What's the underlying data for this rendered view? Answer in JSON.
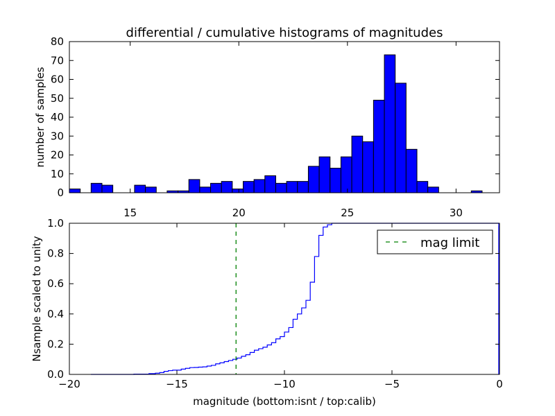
{
  "chart_data": [
    {
      "type": "bar",
      "title": "differential / cumulative histograms of magnitudes",
      "ylabel": "number of samples",
      "xlabel": "",
      "xlim": [
        12.2,
        32.0
      ],
      "ylim": [
        0,
        80
      ],
      "xticks": [
        "15",
        "20",
        "25",
        "30"
      ],
      "yticks": [
        "0",
        "10",
        "20",
        "30",
        "40",
        "50",
        "60",
        "70",
        "80"
      ],
      "bin_edges": [
        12.2,
        12.7,
        13.2,
        13.7,
        14.2,
        14.7,
        15.2,
        15.7,
        16.2,
        16.7,
        17.2,
        17.7,
        18.2,
        18.7,
        19.2,
        19.7,
        20.2,
        20.7,
        21.2,
        21.7,
        22.2,
        22.7,
        23.2,
        23.7,
        24.2,
        24.7,
        25.2,
        25.7,
        26.2,
        26.7,
        27.2,
        27.7,
        28.2,
        28.7,
        29.2,
        29.7,
        30.2,
        30.7,
        31.2
      ],
      "values": [
        2,
        0,
        5,
        4,
        0,
        0,
        4,
        3,
        0,
        1,
        1,
        7,
        3,
        5,
        6,
        2,
        6,
        7,
        9,
        5,
        6,
        6,
        14,
        19,
        13,
        19,
        30,
        27,
        49,
        73,
        58,
        23,
        6,
        3,
        0,
        0,
        0,
        1
      ],
      "color": "#0000ff"
    },
    {
      "type": "line",
      "xlabel": "magnitude (bottom:isnt / top:calib)",
      "ylabel": "Nsample scaled to unity",
      "xlim": [
        -20,
        0
      ],
      "ylim": [
        0,
        1.0
      ],
      "xticks": [
        "−20",
        "−15",
        "−10",
        "−5",
        "0"
      ],
      "yticks": [
        "0.0",
        "0.2",
        "0.4",
        "0.6",
        "0.8",
        "1.0"
      ],
      "series": [
        {
          "style": "step",
          "color": "#0000ff",
          "x": [
            -19.0,
            -17.0,
            -16.3,
            -16.0,
            -15.8,
            -15.6,
            -15.4,
            -15.2,
            -14.8,
            -14.6,
            -14.4,
            -14.2,
            -14.0,
            -13.8,
            -13.6,
            -13.4,
            -13.2,
            -13.0,
            -12.8,
            -12.6,
            -12.4,
            -12.2,
            -12.0,
            -11.8,
            -11.6,
            -11.4,
            -11.2,
            -11.0,
            -10.8,
            -10.6,
            -10.4,
            -10.2,
            -10.0,
            -9.8,
            -9.6,
            -9.4,
            -9.2,
            -9.0,
            -8.8,
            -8.6,
            -8.4,
            -8.2,
            -8.0,
            -7.8
          ],
          "y": [
            0.0,
            0.002,
            0.005,
            0.008,
            0.012,
            0.02,
            0.025,
            0.028,
            0.035,
            0.04,
            0.045,
            0.046,
            0.048,
            0.05,
            0.055,
            0.06,
            0.07,
            0.077,
            0.085,
            0.092,
            0.1,
            0.108,
            0.12,
            0.13,
            0.145,
            0.16,
            0.17,
            0.18,
            0.195,
            0.21,
            0.235,
            0.25,
            0.28,
            0.31,
            0.365,
            0.4,
            0.44,
            0.49,
            0.61,
            0.78,
            0.92,
            0.975,
            0.99,
            1.0
          ]
        },
        {
          "name": "mag limit",
          "style": "dashed",
          "color": "#008000",
          "x_const": -12.25
        }
      ],
      "legend": {
        "position": "top-right",
        "entries": [
          "mag limit"
        ]
      }
    }
  ]
}
